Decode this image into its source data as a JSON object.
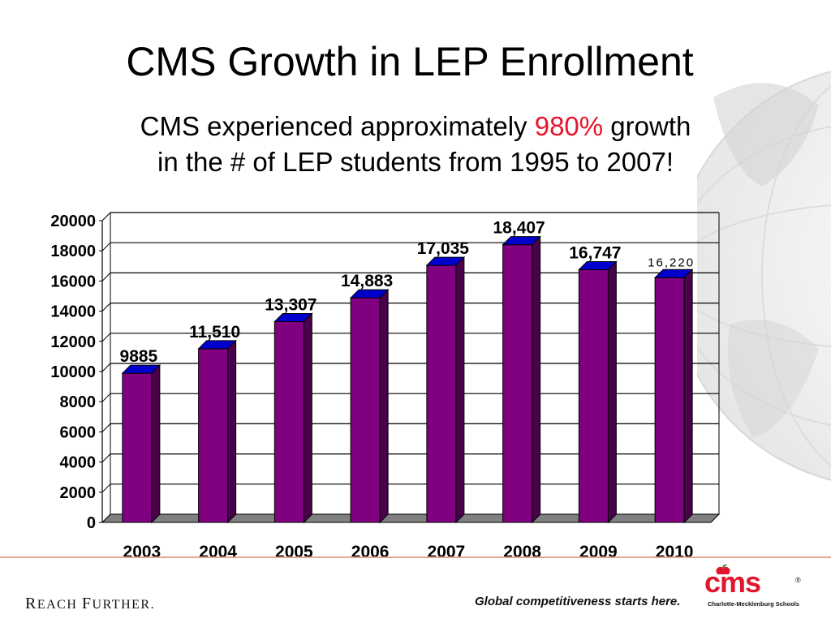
{
  "slide": {
    "title": "CMS Growth in LEP Enrollment",
    "subtitle_pre": "CMS experienced approximately ",
    "subtitle_highlight": "980%",
    "subtitle_post1": " growth",
    "subtitle_line2": "in the # of LEP students from 1995 to 2007!",
    "highlight_color": "#e8132b"
  },
  "footer": {
    "reach_further_r": "R",
    "reach_further_rest": "EACH ",
    "reach_further_f": "F",
    "reach_further_rest2": "URTHER.",
    "tagline": "Global competitiveness starts here.",
    "logo_text": "cms",
    "logo_registered": "®",
    "logo_sub": "Charlotte-Mecklenburg Schools"
  },
  "chart_data": {
    "type": "bar",
    "title": "",
    "xlabel": "",
    "ylabel": "",
    "categories": [
      "2003",
      "2004",
      "2005",
      "2006",
      "2007",
      "2008",
      "2009",
      "2010"
    ],
    "values": [
      9885,
      11510,
      13307,
      14883,
      17035,
      18407,
      16747,
      16220
    ],
    "data_labels": [
      "9885",
      "11,510",
      "13,307",
      "14,883",
      "17,035",
      "18,407",
      "16,747",
      "16,220"
    ],
    "ylim": [
      0,
      20000
    ],
    "yticks": [
      0,
      2000,
      4000,
      6000,
      8000,
      10000,
      12000,
      14000,
      16000,
      18000,
      20000
    ],
    "grid": true,
    "legend": "none",
    "bar_color": "#800080",
    "bar_top_color": "#0000cc",
    "floor_color": "#808080"
  }
}
